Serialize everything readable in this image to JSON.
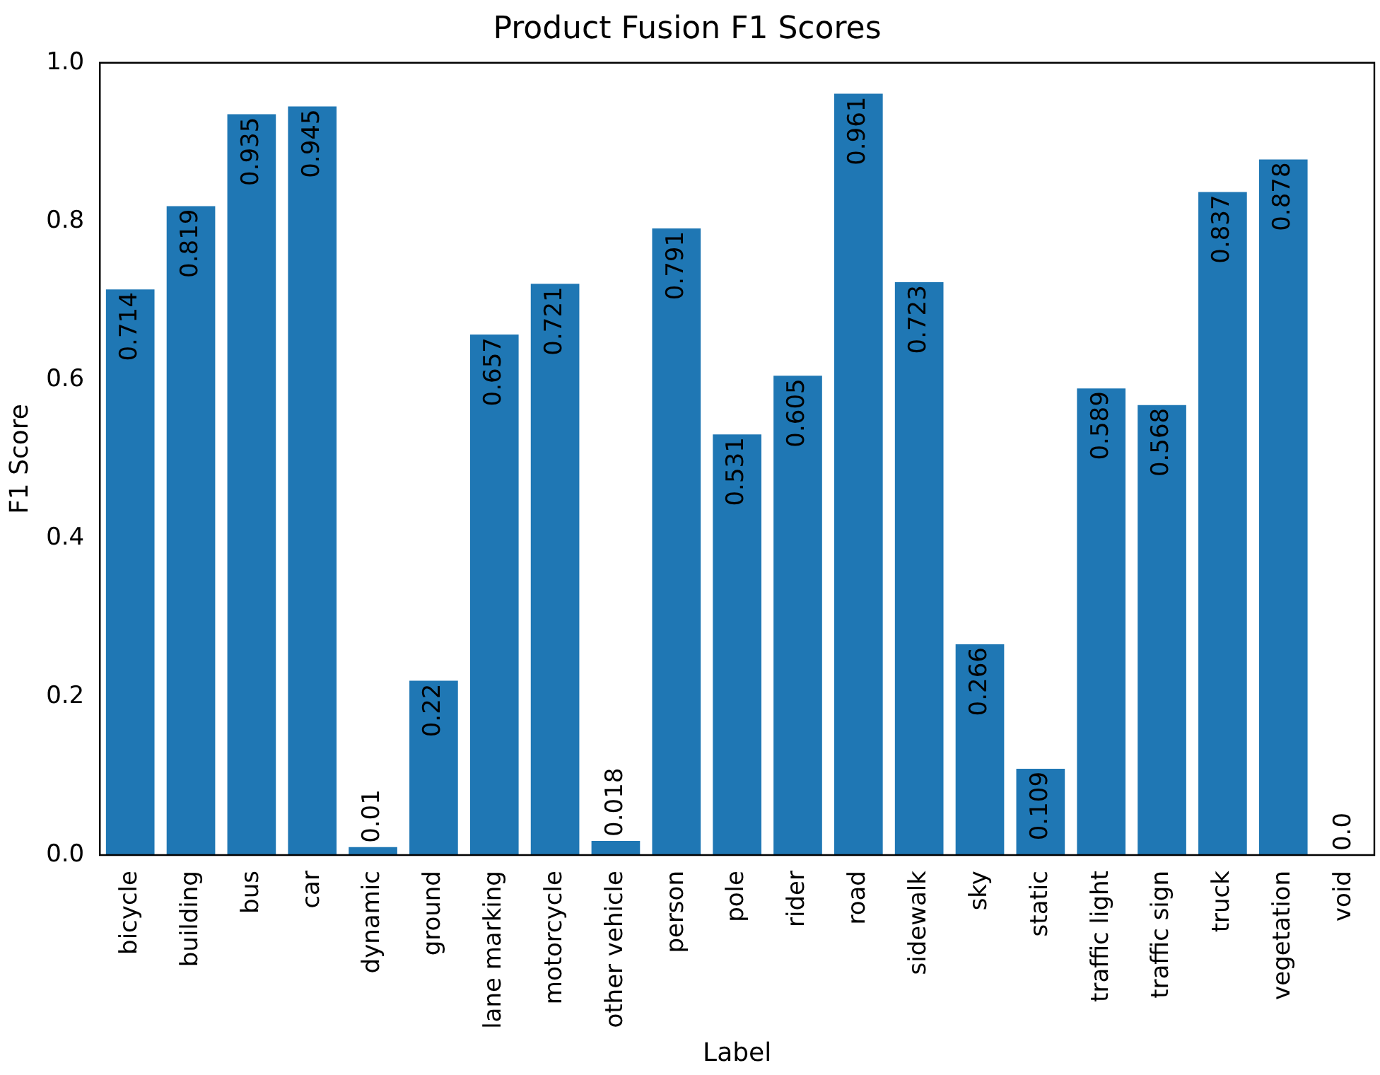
{
  "chart_data": {
    "type": "bar",
    "title": "Product Fusion F1 Scores",
    "xlabel": "Label",
    "ylabel": "F1 Score",
    "categories": [
      "bicycle",
      "building",
      "bus",
      "car",
      "dynamic",
      "ground",
      "lane marking",
      "motorcycle",
      "other vehicle",
      "person",
      "pole",
      "rider",
      "road",
      "sidewalk",
      "sky",
      "static",
      "traffic light",
      "traffic sign",
      "truck",
      "vegetation",
      "void"
    ],
    "values": [
      0.714,
      0.819,
      0.935,
      0.945,
      0.01,
      0.22,
      0.657,
      0.721,
      0.018,
      0.791,
      0.531,
      0.605,
      0.961,
      0.723,
      0.266,
      0.109,
      0.589,
      0.568,
      0.837,
      0.878,
      0.0
    ],
    "value_labels": [
      "0.714",
      "0.819",
      "0.935",
      "0.945",
      "0.01",
      "0.22",
      "0.657",
      "0.721",
      "0.018",
      "0.791",
      "0.531",
      "0.605",
      "0.961",
      "0.723",
      "0.266",
      "0.109",
      "0.589",
      "0.568",
      "0.837",
      "0.878",
      "0.0"
    ],
    "color": "#1f77b4",
    "ylim": [
      0,
      1
    ],
    "yticks": [
      {
        "value": 0,
        "label": "0.0"
      },
      {
        "value": 0.2,
        "label": "0.2"
      },
      {
        "value": 0.4,
        "label": "0.4"
      },
      {
        "value": 0.6,
        "label": "0.6"
      },
      {
        "value": 0.8,
        "label": "0.8"
      },
      {
        "value": 1,
        "label": "1.0"
      }
    ],
    "grid": false,
    "legend": false
  }
}
